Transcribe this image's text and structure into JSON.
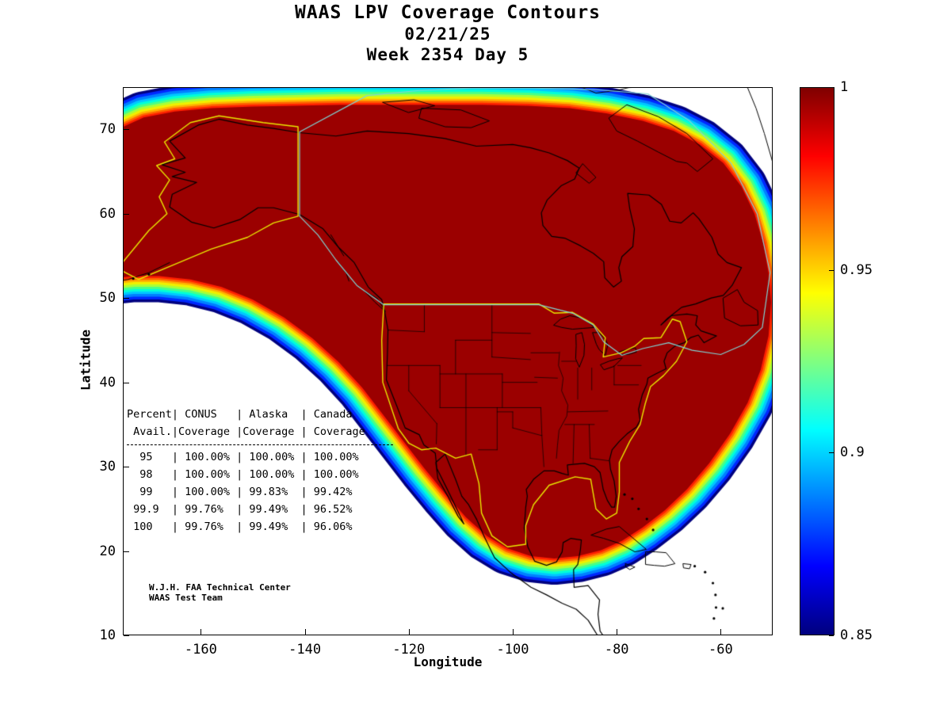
{
  "title": {
    "line1": "WAAS LPV Coverage Contours",
    "line2": "02/21/25",
    "line3": "Week 2354 Day 5"
  },
  "axes": {
    "xlabel": "Longitude",
    "ylabel": "Latitude"
  },
  "annotation": {
    "line1": "W.J.H. FAA Technical Center",
    "line2": "WAAS Test Team"
  },
  "coverage_table": {
    "header1": "Percent| CONUS   | Alaska  | Canada",
    "header2": " Avail.|Coverage |Coverage | Coverage",
    "rows": [
      "  95   | 100.00% | 100.00% | 100.00%",
      "  98   | 100.00% | 100.00% | 100.00%",
      "  99   | 100.00% | 99.83%  | 99.42%",
      " 99.9  | 99.76%  | 99.49%  | 96.52%",
      " 100   | 99.76%  | 99.49%  | 96.06%"
    ]
  },
  "chart_data": {
    "type": "heatmap",
    "title": "WAAS LPV Coverage Contours 02/21/25 Week 2354 Day 5",
    "xlabel": "Longitude",
    "ylabel": "Latitude",
    "xlim": [
      -175,
      -50
    ],
    "ylim": [
      10,
      75
    ],
    "xticks": [
      -160,
      -140,
      -120,
      -100,
      -80,
      -60
    ],
    "yticks": [
      10,
      20,
      30,
      40,
      50,
      60,
      70
    ],
    "grid": false,
    "colorbar": {
      "min": 0.85,
      "max": 1,
      "colormap": "jet",
      "tick_values": [
        1,
        0.95,
        0.9,
        0.85
      ],
      "tick_labels": [
        "1",
        "0.95",
        "0.9",
        "0.85"
      ]
    },
    "regions_outlined": [
      "CONUS (yellow)",
      "Alaska (yellow)",
      "Canada (cyan)"
    ],
    "coverage_table": {
      "columns": [
        "Percent Avail.",
        "CONUS Coverage",
        "Alaska Coverage",
        "Canada Coverage"
      ],
      "rows": [
        [
          "95",
          "100.00%",
          "100.00%",
          "100.00%"
        ],
        [
          "98",
          "100.00%",
          "100.00%",
          "100.00%"
        ],
        [
          "99",
          "100.00%",
          "99.83%",
          "99.42%"
        ],
        [
          "99.9",
          "99.76%",
          "99.49%",
          "96.52%"
        ],
        [
          "100",
          "99.76%",
          "99.49%",
          "96.06%"
        ]
      ]
    },
    "colors": {
      "interior_fill": "#9B0000",
      "conus_outline": "#E8E800",
      "alaska_outline": "#E8E800",
      "canada_outline": "#7FD4D4",
      "coastline": "#000000"
    }
  }
}
